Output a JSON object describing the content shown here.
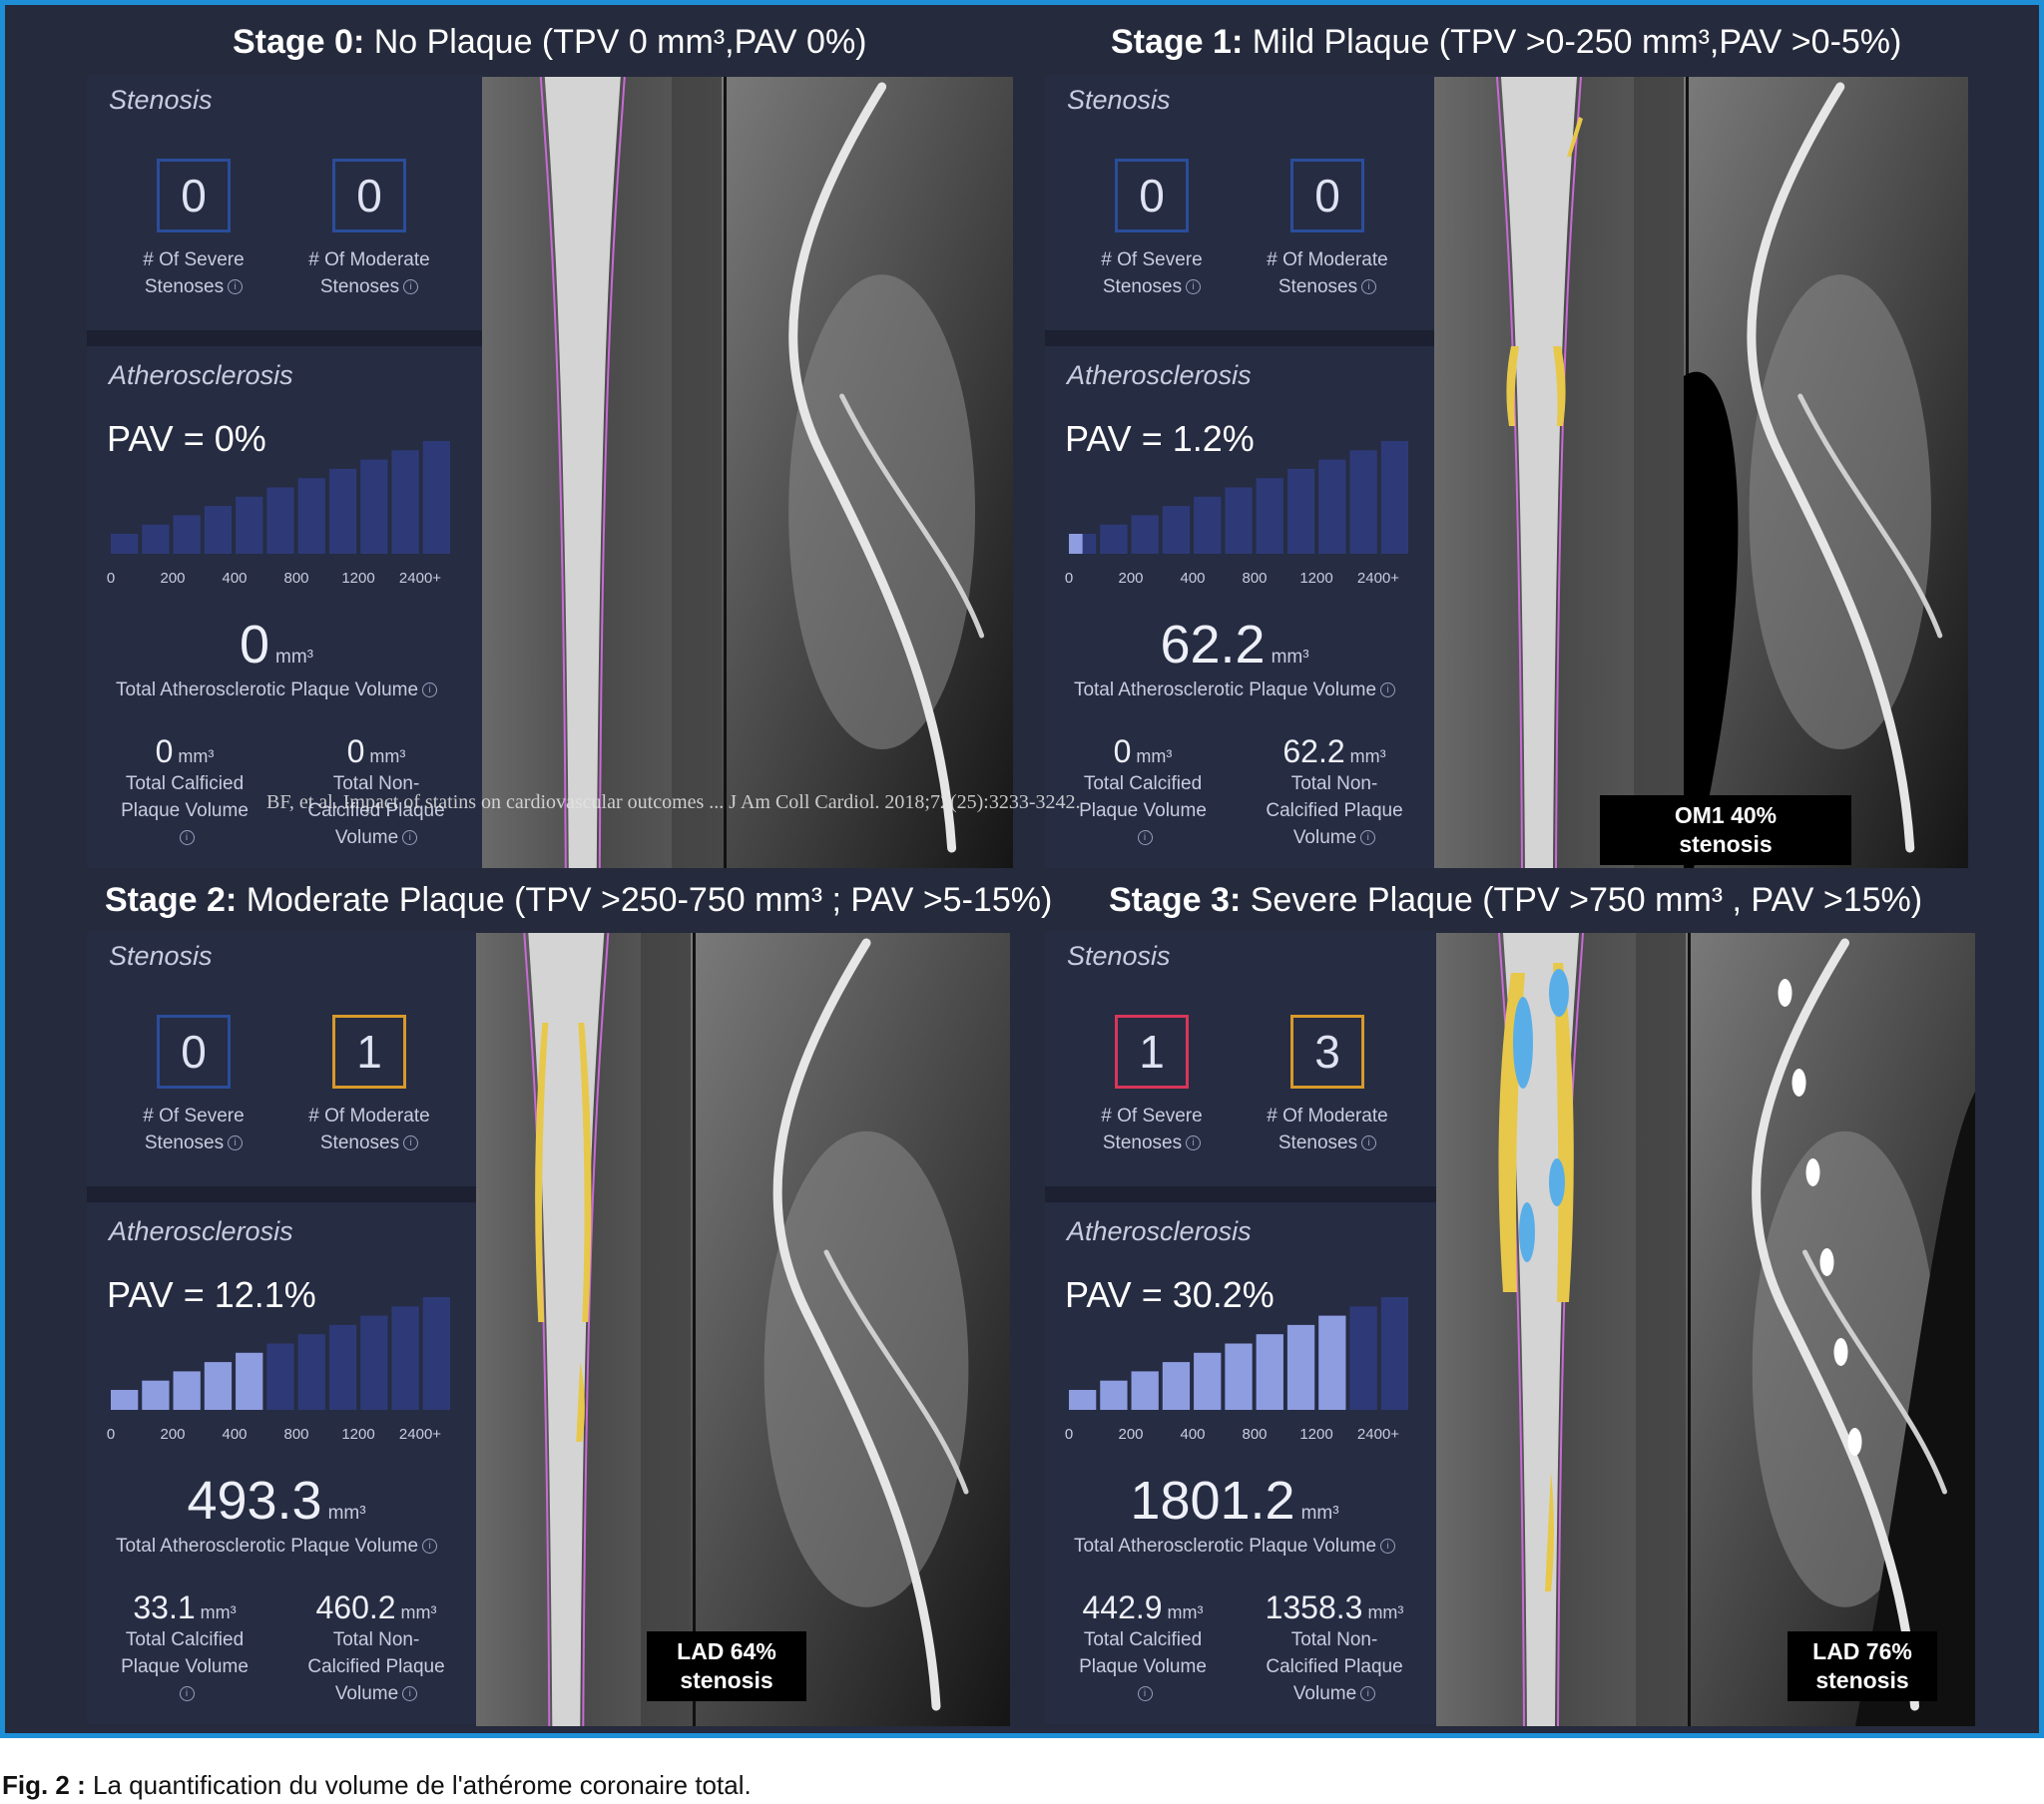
{
  "stages": [
    {
      "title_bold": "Stage 0:",
      "title_rest": " No Plaque (TPV 0 mm³,PAV 0%)",
      "stenosis_label": "Stenosis",
      "severe": {
        "value": "0",
        "label_line1": "# Of Severe",
        "label_line2": "Stenoses"
      },
      "moderate": {
        "value": "0",
        "label_line1": "# Of Moderate",
        "label_line2": "Stenoses"
      },
      "athero_label": "Atherosclerosis",
      "pav": "PAV = 0%",
      "pav_bars_filled": 0,
      "ticks": [
        "0",
        "200",
        "400",
        "800",
        "1200",
        "2400+"
      ],
      "tpv_value": "0",
      "tpv_unit": "mm³",
      "tpv_label": "Total Atherosclerotic Plaque Volume",
      "calcified": {
        "value": "0",
        "unit": "mm³",
        "line1": "Total Calficied",
        "line2": "Plaque Volume"
      },
      "noncalcified": {
        "value": "0",
        "unit": "mm³",
        "line1": "Total Non-",
        "line2": "Calcified Plaque",
        "line3": "Volume"
      },
      "image_caption_line1": "",
      "image_caption_line2": ""
    },
    {
      "title_bold": "Stage 1:",
      "title_rest": " Mild Plaque (TPV >0-250 mm³,PAV >0-5%)",
      "stenosis_label": "Stenosis",
      "severe": {
        "value": "0",
        "label_line1": "# Of Severe",
        "label_line2": "Stenoses"
      },
      "moderate": {
        "value": "0",
        "label_line1": "# Of Moderate",
        "label_line2": "Stenoses"
      },
      "athero_label": "Atherosclerosis",
      "pav": "PAV = 1.2%",
      "pav_bars_filled": 0.5,
      "ticks": [
        "0",
        "200",
        "400",
        "800",
        "1200",
        "2400+"
      ],
      "tpv_value": "62.2",
      "tpv_unit": "mm³",
      "tpv_label": "Total Atherosclerotic Plaque Volume",
      "calcified": {
        "value": "0",
        "unit": "mm³",
        "line1": "Total Calcified",
        "line2": "Plaque Volume"
      },
      "noncalcified": {
        "value": "62.2",
        "unit": "mm³",
        "line1": "Total Non-",
        "line2": "Calcified Plaque",
        "line3": "Volume"
      },
      "image_caption_line1": "OM1 40%",
      "image_caption_line2": "stenosis"
    },
    {
      "title_bold": "Stage 2:",
      "title_rest": " Moderate Plaque (TPV >250-750 mm³ ; PAV >5-15%)",
      "stenosis_label": "Stenosis",
      "severe": {
        "value": "0",
        "label_line1": "# Of Severe",
        "label_line2": "Stenoses"
      },
      "moderate": {
        "value": "1",
        "label_line1": "# Of Moderate",
        "label_line2": "Stenoses"
      },
      "athero_label": "Atherosclerosis",
      "pav": "PAV = 12.1%",
      "pav_bars_filled": 5,
      "ticks": [
        "0",
        "200",
        "400",
        "800",
        "1200",
        "2400+"
      ],
      "tpv_value": "493.3",
      "tpv_unit": "mm³",
      "tpv_label": "Total Atherosclerotic Plaque Volume",
      "calcified": {
        "value": "33.1",
        "unit": "mm³",
        "line1": "Total Calcified",
        "line2": "Plaque Volume"
      },
      "noncalcified": {
        "value": "460.2",
        "unit": "mm³",
        "line1": "Total Non-",
        "line2": "Calcified Plaque",
        "line3": "Volume"
      },
      "image_caption_line1": "LAD 64%",
      "image_caption_line2": "stenosis"
    },
    {
      "title_bold": "Stage 3:",
      "title_rest": " Severe Plaque (TPV >750 mm³ , PAV >15%)",
      "stenosis_label": "Stenosis",
      "severe": {
        "value": "1",
        "label_line1": "# Of Severe",
        "label_line2": "Stenoses"
      },
      "moderate": {
        "value": "3",
        "label_line1": "# Of Moderate",
        "label_line2": "Stenoses"
      },
      "athero_label": "Atherosclerosis",
      "pav": "PAV = 30.2%",
      "pav_bars_filled": 9,
      "ticks": [
        "0",
        "200",
        "400",
        "800",
        "1200",
        "2400+"
      ],
      "tpv_value": "1801.2",
      "tpv_unit": "mm³",
      "tpv_label": "Total Atherosclerotic Plaque Volume",
      "calcified": {
        "value": "442.9",
        "unit": "mm³",
        "line1": "Total Calcified",
        "line2": "Plaque Volume"
      },
      "noncalcified": {
        "value": "1358.3",
        "unit": "mm³",
        "line1": "Total Non-",
        "line2": "Calcified Plaque",
        "line3": "Volume"
      },
      "image_caption_line1": "LAD 76%",
      "image_caption_line2": "stenosis"
    }
  ],
  "overlay_reference": "BF, et al. Impact of statins on cardiovascular outcomes ... J Am Coll Cardiol. 2018;72(25):3233-3242.",
  "figure_caption_bold": "Fig. 2 :",
  "figure_caption_text": " La quantification du volume de l'athérome coronaire total.",
  "colors": {
    "frame_border": "#1e8fd6",
    "background": "#252a3c",
    "bar_empty": "#2e3a78",
    "bar_filled": "#8e9de0",
    "severe_box": "#d8365a",
    "moderate_box": "#d89a2a",
    "default_box": "#2b4d9a",
    "plaque_noncalcified": "#e7c84a",
    "plaque_calcified": "#5aaee8"
  }
}
